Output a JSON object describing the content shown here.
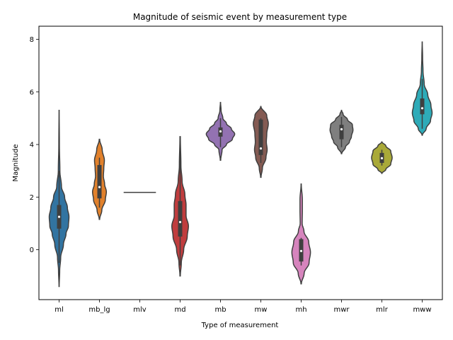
{
  "chart_data": {
    "type": "violin",
    "title": "Magnitude of seismic event by measurement type",
    "xlabel": "Type of measurement",
    "ylabel": "Magnitude",
    "ylim": [
      -1.9,
      8.5
    ],
    "yticks": [
      0,
      2,
      4,
      6,
      8
    ],
    "grid": false,
    "legend": "none",
    "categories": [
      "ml",
      "mb_lg",
      "mlv",
      "md",
      "mb",
      "mw",
      "mh",
      "mwr",
      "mlr",
      "mww"
    ],
    "series": [
      {
        "category": "ml",
        "color": "#3274a1",
        "min": -1.4,
        "max": 5.3,
        "q1": 0.8,
        "median": 1.25,
        "q3": 1.7,
        "whisker_low": -0.5,
        "whisker_high": 3.0,
        "profile": [
          [
            -1.4,
            0.004
          ],
          [
            -0.8,
            0.03
          ],
          [
            -0.3,
            0.08
          ],
          [
            0.2,
            0.22
          ],
          [
            0.6,
            0.35
          ],
          [
            0.9,
            0.47
          ],
          [
            1.25,
            0.5
          ],
          [
            1.6,
            0.42
          ],
          [
            2.0,
            0.28
          ],
          [
            2.4,
            0.12
          ],
          [
            3.0,
            0.04
          ],
          [
            4.0,
            0.015
          ],
          [
            5.3,
            0.003
          ]
        ]
      },
      {
        "category": "mb_lg",
        "color": "#e1812c",
        "min": 1.15,
        "max": 4.2,
        "q1": 1.95,
        "median": 2.38,
        "q3": 3.22,
        "whisker_low": 1.6,
        "whisker_high": 3.5,
        "profile": [
          [
            1.15,
            0.01
          ],
          [
            1.5,
            0.12
          ],
          [
            1.9,
            0.3
          ],
          [
            2.2,
            0.35
          ],
          [
            2.5,
            0.26
          ],
          [
            2.8,
            0.2
          ],
          [
            3.1,
            0.22
          ],
          [
            3.4,
            0.25
          ],
          [
            3.8,
            0.14
          ],
          [
            4.2,
            0.01
          ]
        ]
      },
      {
        "category": "mlv",
        "color": "#3a923a",
        "min": 2.18,
        "max": 2.18,
        "q1": 2.18,
        "median": 2.18,
        "q3": 2.18,
        "whisker_low": 2.18,
        "whisker_high": 2.18,
        "profile": []
      },
      {
        "category": "md",
        "color": "#c03d3e",
        "min": -1.0,
        "max": 4.3,
        "q1": 0.5,
        "median": 1.05,
        "q3": 1.85,
        "whisker_low": -0.6,
        "whisker_high": 3.7,
        "profile": [
          [
            -1.0,
            0.01
          ],
          [
            -0.5,
            0.06
          ],
          [
            0.0,
            0.18
          ],
          [
            0.5,
            0.36
          ],
          [
            0.9,
            0.42
          ],
          [
            1.3,
            0.3
          ],
          [
            1.7,
            0.3
          ],
          [
            2.1,
            0.24
          ],
          [
            2.6,
            0.1
          ],
          [
            3.2,
            0.04
          ],
          [
            4.3,
            0.01
          ]
        ]
      },
      {
        "category": "mb",
        "color": "#9372b2",
        "min": 3.4,
        "max": 5.6,
        "q1": 4.3,
        "median": 4.5,
        "q3": 4.65,
        "whisker_low": 3.9,
        "whisker_high": 5.0,
        "profile": [
          [
            3.4,
            0.01
          ],
          [
            3.8,
            0.08
          ],
          [
            4.0,
            0.3
          ],
          [
            4.2,
            0.6
          ],
          [
            4.4,
            0.72
          ],
          [
            4.6,
            0.55
          ],
          [
            4.8,
            0.3
          ],
          [
            5.0,
            0.12
          ],
          [
            5.3,
            0.03
          ],
          [
            5.6,
            0.005
          ]
        ]
      },
      {
        "category": "mw",
        "color": "#845b53",
        "min": 2.75,
        "max": 5.45,
        "q1": 3.6,
        "median": 3.85,
        "q3": 4.95,
        "whisker_low": 3.3,
        "whisker_high": 5.0,
        "profile": [
          [
            2.75,
            0.01
          ],
          [
            3.1,
            0.08
          ],
          [
            3.5,
            0.26
          ],
          [
            3.8,
            0.32
          ],
          [
            4.1,
            0.28
          ],
          [
            4.4,
            0.3
          ],
          [
            4.8,
            0.38
          ],
          [
            5.1,
            0.3
          ],
          [
            5.45,
            0.005
          ]
        ]
      },
      {
        "category": "mh",
        "color": "#d684bd",
        "min": -1.3,
        "max": 2.5,
        "q1": -0.45,
        "median": -0.05,
        "q3": 0.4,
        "whisker_low": -0.6,
        "whisker_high": 0.45,
        "profile": [
          [
            -1.3,
            0.01
          ],
          [
            -0.9,
            0.15
          ],
          [
            -0.5,
            0.4
          ],
          [
            -0.1,
            0.47
          ],
          [
            0.3,
            0.38
          ],
          [
            0.7,
            0.14
          ],
          [
            1.0,
            0.05
          ],
          [
            1.5,
            0.06
          ],
          [
            1.9,
            0.06
          ],
          [
            2.5,
            0.005
          ]
        ]
      },
      {
        "category": "mwr",
        "color": "#7f7f7f",
        "min": 3.65,
        "max": 5.3,
        "q1": 4.2,
        "median": 4.58,
        "q3": 4.75,
        "whisker_low": 3.9,
        "whisker_high": 5.05,
        "profile": [
          [
            3.65,
            0.01
          ],
          [
            3.9,
            0.2
          ],
          [
            4.1,
            0.4
          ],
          [
            4.3,
            0.5
          ],
          [
            4.55,
            0.58
          ],
          [
            4.75,
            0.55
          ],
          [
            4.95,
            0.3
          ],
          [
            5.15,
            0.08
          ],
          [
            5.3,
            0.005
          ]
        ]
      },
      {
        "category": "mlr",
        "color": "#a9a938",
        "min": 2.9,
        "max": 4.1,
        "q1": 3.3,
        "median": 3.48,
        "q3": 3.68,
        "whisker_low": 3.2,
        "whisker_high": 3.8,
        "profile": [
          [
            2.9,
            0.005
          ],
          [
            3.05,
            0.2
          ],
          [
            3.25,
            0.45
          ],
          [
            3.5,
            0.52
          ],
          [
            3.75,
            0.45
          ],
          [
            3.95,
            0.2
          ],
          [
            4.1,
            0.005
          ]
        ]
      },
      {
        "category": "mww",
        "color": "#2eabb8",
        "min": 4.35,
        "max": 7.9,
        "q1": 5.15,
        "median": 5.38,
        "q3": 5.75,
        "whisker_low": 4.6,
        "whisker_high": 6.5,
        "profile": [
          [
            4.35,
            0.005
          ],
          [
            4.6,
            0.2
          ],
          [
            4.9,
            0.42
          ],
          [
            5.2,
            0.5
          ],
          [
            5.5,
            0.44
          ],
          [
            5.9,
            0.28
          ],
          [
            6.3,
            0.1
          ],
          [
            6.8,
            0.04
          ],
          [
            7.3,
            0.02
          ],
          [
            7.9,
            0.003
          ]
        ]
      }
    ]
  }
}
